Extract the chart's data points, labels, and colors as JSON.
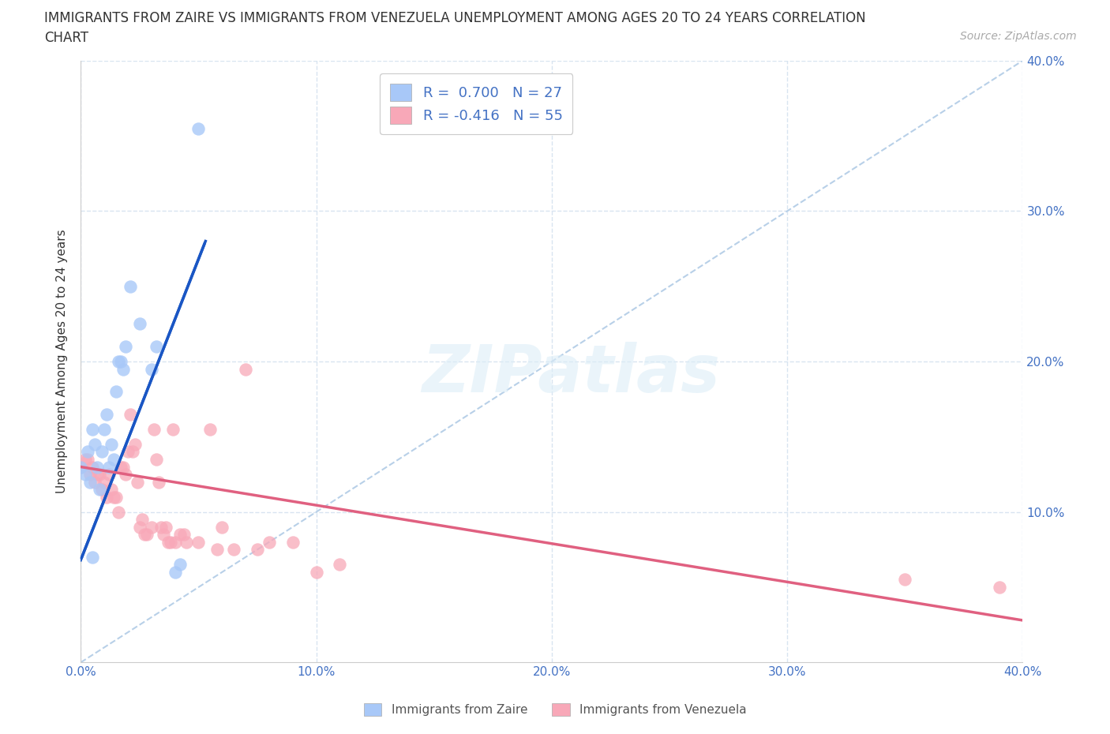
{
  "title_line1": "IMMIGRANTS FROM ZAIRE VS IMMIGRANTS FROM VENEZUELA UNEMPLOYMENT AMONG AGES 20 TO 24 YEARS CORRELATION",
  "title_line2": "CHART",
  "source_text": "Source: ZipAtlas.com",
  "ylabel": "Unemployment Among Ages 20 to 24 years",
  "xlim": [
    0.0,
    0.4
  ],
  "ylim": [
    0.0,
    0.4
  ],
  "xticks": [
    0.0,
    0.1,
    0.2,
    0.3,
    0.4
  ],
  "yticks": [
    0.1,
    0.2,
    0.3,
    0.4
  ],
  "xticklabels": [
    "0.0%",
    "10.0%",
    "20.0%",
    "30.0%",
    "40.0%"
  ],
  "yticklabels_right": [
    "10.0%",
    "20.0%",
    "30.0%",
    "40.0%"
  ],
  "watermark": "ZIPatlas",
  "legend_r1": "R =  0.700   N = 27",
  "legend_r2": "R = -0.416   N = 55",
  "color_zaire": "#a8c8f8",
  "color_venezuela": "#f8a8b8",
  "line_zaire": "#1a56c4",
  "line_venezuela": "#e06080",
  "line_diagonal_color": "#b8d0e8",
  "zaire_points": [
    [
      0.0,
      0.13
    ],
    [
      0.002,
      0.125
    ],
    [
      0.003,
      0.14
    ],
    [
      0.004,
      0.12
    ],
    [
      0.005,
      0.155
    ],
    [
      0.006,
      0.145
    ],
    [
      0.007,
      0.13
    ],
    [
      0.008,
      0.115
    ],
    [
      0.009,
      0.14
    ],
    [
      0.01,
      0.155
    ],
    [
      0.011,
      0.165
    ],
    [
      0.012,
      0.13
    ],
    [
      0.013,
      0.145
    ],
    [
      0.014,
      0.135
    ],
    [
      0.015,
      0.18
    ],
    [
      0.016,
      0.2
    ],
    [
      0.017,
      0.2
    ],
    [
      0.018,
      0.195
    ],
    [
      0.019,
      0.21
    ],
    [
      0.021,
      0.25
    ],
    [
      0.025,
      0.225
    ],
    [
      0.03,
      0.195
    ],
    [
      0.032,
      0.21
    ],
    [
      0.04,
      0.06
    ],
    [
      0.042,
      0.065
    ],
    [
      0.05,
      0.355
    ],
    [
      0.005,
      0.07
    ]
  ],
  "venezuela_points": [
    [
      0.0,
      0.13
    ],
    [
      0.002,
      0.135
    ],
    [
      0.003,
      0.135
    ],
    [
      0.004,
      0.125
    ],
    [
      0.005,
      0.13
    ],
    [
      0.006,
      0.12
    ],
    [
      0.007,
      0.125
    ],
    [
      0.008,
      0.125
    ],
    [
      0.009,
      0.115
    ],
    [
      0.01,
      0.12
    ],
    [
      0.011,
      0.11
    ],
    [
      0.012,
      0.125
    ],
    [
      0.013,
      0.115
    ],
    [
      0.014,
      0.11
    ],
    [
      0.015,
      0.11
    ],
    [
      0.016,
      0.1
    ],
    [
      0.017,
      0.13
    ],
    [
      0.018,
      0.13
    ],
    [
      0.019,
      0.125
    ],
    [
      0.02,
      0.14
    ],
    [
      0.021,
      0.165
    ],
    [
      0.022,
      0.14
    ],
    [
      0.023,
      0.145
    ],
    [
      0.024,
      0.12
    ],
    [
      0.025,
      0.09
    ],
    [
      0.026,
      0.095
    ],
    [
      0.027,
      0.085
    ],
    [
      0.028,
      0.085
    ],
    [
      0.03,
      0.09
    ],
    [
      0.031,
      0.155
    ],
    [
      0.032,
      0.135
    ],
    [
      0.033,
      0.12
    ],
    [
      0.034,
      0.09
    ],
    [
      0.035,
      0.085
    ],
    [
      0.036,
      0.09
    ],
    [
      0.037,
      0.08
    ],
    [
      0.038,
      0.08
    ],
    [
      0.039,
      0.155
    ],
    [
      0.04,
      0.08
    ],
    [
      0.042,
      0.085
    ],
    [
      0.044,
      0.085
    ],
    [
      0.045,
      0.08
    ],
    [
      0.05,
      0.08
    ],
    [
      0.055,
      0.155
    ],
    [
      0.058,
      0.075
    ],
    [
      0.06,
      0.09
    ],
    [
      0.065,
      0.075
    ],
    [
      0.07,
      0.195
    ],
    [
      0.075,
      0.075
    ],
    [
      0.08,
      0.08
    ],
    [
      0.09,
      0.08
    ],
    [
      0.1,
      0.06
    ],
    [
      0.11,
      0.065
    ],
    [
      0.35,
      0.055
    ],
    [
      0.39,
      0.05
    ]
  ],
  "background_color": "#ffffff",
  "grid_color": "#d8e4f0",
  "tick_color": "#4472c4",
  "title_fontsize": 12,
  "axis_fontsize": 11,
  "tick_fontsize": 11,
  "source_fontsize": 10
}
